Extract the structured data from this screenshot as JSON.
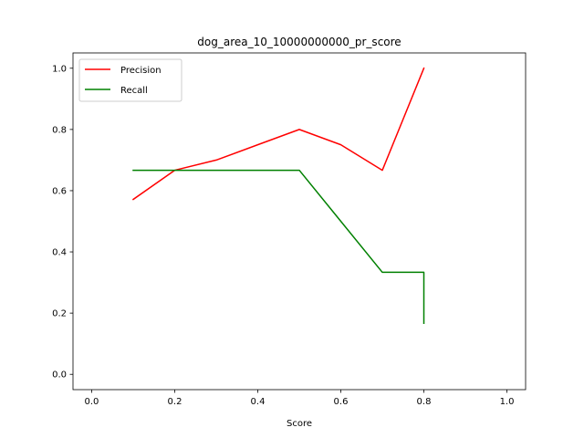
{
  "chart_data": {
    "type": "line",
    "title": "dog_area_10_10000000000_pr_score",
    "xlabel": "Score",
    "ylabel": "",
    "xlim": [
      -0.045,
      1.045
    ],
    "ylim": [
      -0.05,
      1.05
    ],
    "xticks": [
      0.0,
      0.2,
      0.4,
      0.6,
      0.8,
      1.0
    ],
    "xtick_labels": [
      "0.0",
      "0.2",
      "0.4",
      "0.6",
      "0.8",
      "1.0"
    ],
    "yticks": [
      0.0,
      0.2,
      0.4,
      0.6,
      0.8,
      1.0
    ],
    "ytick_labels": [
      "0.0",
      "0.2",
      "0.4",
      "0.6",
      "0.8",
      "1.0"
    ],
    "grid": false,
    "legend_position": "top-left",
    "series": [
      {
        "name": "Precision",
        "color": "#ff0000",
        "points": [
          [
            0.1,
            0.5714
          ],
          [
            0.2,
            0.6667
          ],
          [
            0.3,
            0.7
          ],
          [
            0.4,
            0.75
          ],
          [
            0.5,
            0.8
          ],
          [
            0.6,
            0.75
          ],
          [
            0.7,
            0.6667
          ],
          [
            0.8,
            1.0
          ]
        ]
      },
      {
        "name": "Recall",
        "color": "#008000",
        "points": [
          [
            0.1,
            0.6667
          ],
          [
            0.2,
            0.6667
          ],
          [
            0.3,
            0.6667
          ],
          [
            0.4,
            0.6667
          ],
          [
            0.5,
            0.6667
          ],
          [
            0.6,
            0.5
          ],
          [
            0.7,
            0.3333
          ],
          [
            0.8,
            0.3333
          ],
          [
            0.8,
            0.1667
          ]
        ]
      }
    ]
  }
}
